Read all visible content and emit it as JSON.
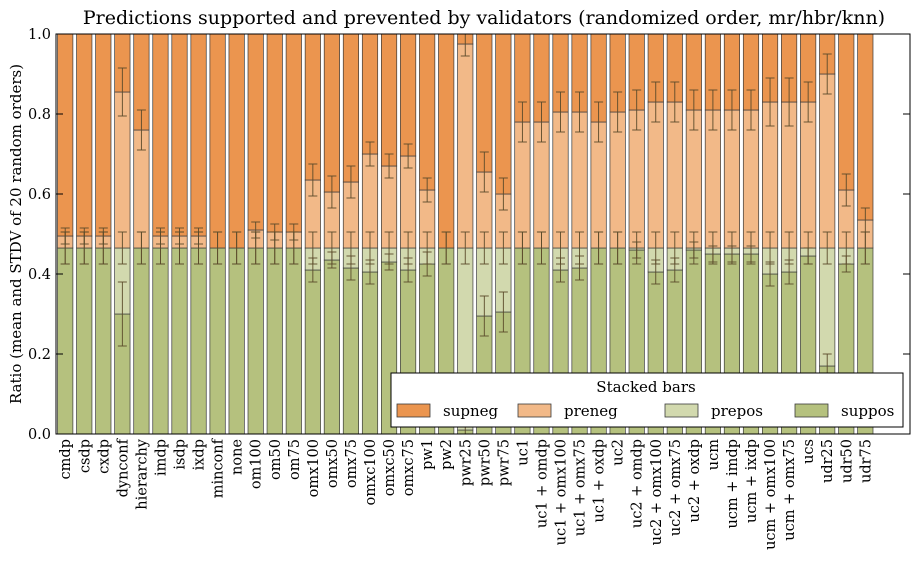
{
  "chart_data": {
    "type": "bar",
    "stacked": true,
    "title": "Predictions supported and prevented by validators (randomized order, mr/hbr/knn)",
    "xlabel": "",
    "ylabel": "Ratio (mean and STDV of 20 random orders)",
    "ylim": [
      0.0,
      1.0
    ],
    "yticks": [
      "0.0",
      "0.2",
      "0.4",
      "0.6",
      "0.8",
      "1.0"
    ],
    "grid": false,
    "legend": {
      "title": "Stacked bars",
      "placement": "lower-right"
    },
    "categories": [
      "cmdp",
      "csdp",
      "cxdp",
      "dynconf",
      "hierarchy",
      "imdp",
      "isdp",
      "ixdp",
      "minconf",
      "none",
      "om100",
      "om50",
      "om75",
      "omx100",
      "omx50",
      "omx75",
      "omxc100",
      "omxc50",
      "omxc75",
      "pw1",
      "pw2",
      "pwr25",
      "pwr50",
      "pwr75",
      "uc1",
      "uc1 + omdp",
      "uc1 + omx100",
      "uc1 + omx75",
      "uc1 + oxdp",
      "uc2",
      "uc2 + omdp",
      "uc2 + omx100",
      "uc2 + omx75",
      "uc2 + oxdp",
      "ucm",
      "ucm + imdp",
      "ucm + ixdp",
      "ucm + omx100",
      "ucm + omx75",
      "ucs",
      "udr25",
      "udr50",
      "udr75"
    ],
    "series": [
      {
        "name": "suppos",
        "color": "#b5c17e",
        "values": [
          0.465,
          0.465,
          0.465,
          0.3,
          0.465,
          0.465,
          0.465,
          0.465,
          0.465,
          0.465,
          0.465,
          0.465,
          0.465,
          0.41,
          0.435,
          0.415,
          0.405,
          0.43,
          0.41,
          0.425,
          0.465,
          0.01,
          0.295,
          0.305,
          0.465,
          0.465,
          0.41,
          0.415,
          0.465,
          0.465,
          0.46,
          0.405,
          0.41,
          0.46,
          0.45,
          0.45,
          0.45,
          0.4,
          0.405,
          0.445,
          0.17,
          0.425,
          0.465
        ],
        "err": [
          0.04,
          0.04,
          0.04,
          0.08,
          0.04,
          0.04,
          0.04,
          0.04,
          0.04,
          0.04,
          0.04,
          0.04,
          0.04,
          0.03,
          0.02,
          0.03,
          0.03,
          0.02,
          0.03,
          0.03,
          0.04,
          0.01,
          0.05,
          0.05,
          0.04,
          0.04,
          0.03,
          0.03,
          0.04,
          0.04,
          0.02,
          0.03,
          0.03,
          0.02,
          0.02,
          0.02,
          0.02,
          0.03,
          0.03,
          0.02,
          0.03,
          0.02,
          0.04
        ]
      },
      {
        "name": "prepos",
        "color": "#d2d9ae",
        "values": [
          0.0,
          0.0,
          0.0,
          0.165,
          0.0,
          0.0,
          0.0,
          0.0,
          0.0,
          0.0,
          0.0,
          0.0,
          0.0,
          0.055,
          0.03,
          0.05,
          0.06,
          0.035,
          0.055,
          0.04,
          0.0,
          0.455,
          0.17,
          0.16,
          0.0,
          0.0,
          0.055,
          0.05,
          0.0,
          0.0,
          0.005,
          0.06,
          0.055,
          0.005,
          0.015,
          0.015,
          0.015,
          0.065,
          0.06,
          0.02,
          0.295,
          0.04,
          0.0
        ],
        "err": [
          0.04,
          0.04,
          0.04,
          0.04,
          0.04,
          0.04,
          0.04,
          0.04,
          0.04,
          0.04,
          0.04,
          0.04,
          0.04,
          0.04,
          0.04,
          0.04,
          0.04,
          0.04,
          0.04,
          0.04,
          0.04,
          0.04,
          0.04,
          0.04,
          0.04,
          0.04,
          0.04,
          0.04,
          0.04,
          0.04,
          0.04,
          0.04,
          0.04,
          0.04,
          0.04,
          0.04,
          0.04,
          0.04,
          0.04,
          0.04,
          0.04,
          0.04,
          0.04
        ]
      },
      {
        "name": "preneg",
        "color": "#f2b988",
        "values": [
          0.03,
          0.03,
          0.03,
          0.39,
          0.295,
          0.03,
          0.03,
          0.03,
          0.0,
          0.0,
          0.045,
          0.04,
          0.04,
          0.17,
          0.14,
          0.165,
          0.235,
          0.205,
          0.23,
          0.145,
          0.0,
          0.51,
          0.19,
          0.135,
          0.315,
          0.315,
          0.34,
          0.34,
          0.315,
          0.34,
          0.345,
          0.365,
          0.365,
          0.345,
          0.345,
          0.345,
          0.345,
          0.365,
          0.365,
          0.365,
          0.435,
          0.145,
          0.07
        ],
        "err": [
          0.02,
          0.02,
          0.02,
          0.06,
          0.05,
          0.02,
          0.02,
          0.02,
          0.0,
          0.0,
          0.02,
          0.02,
          0.02,
          0.04,
          0.04,
          0.04,
          0.03,
          0.03,
          0.03,
          0.03,
          0.0,
          0.03,
          0.05,
          0.04,
          0.05,
          0.05,
          0.05,
          0.05,
          0.05,
          0.05,
          0.05,
          0.05,
          0.05,
          0.05,
          0.05,
          0.05,
          0.05,
          0.06,
          0.06,
          0.05,
          0.05,
          0.04,
          0.03
        ]
      },
      {
        "name": "supneg",
        "color": "#eb954f",
        "values": [
          0.505,
          0.505,
          0.505,
          0.145,
          0.24,
          0.505,
          0.505,
          0.505,
          0.535,
          0.535,
          0.49,
          0.495,
          0.495,
          0.365,
          0.395,
          0.37,
          0.3,
          0.33,
          0.305,
          0.39,
          0.535,
          0.025,
          0.345,
          0.4,
          0.22,
          0.22,
          0.195,
          0.195,
          0.22,
          0.195,
          0.19,
          0.17,
          0.17,
          0.19,
          0.19,
          0.19,
          0.19,
          0.17,
          0.17,
          0.17,
          0.1,
          0.39,
          0.465
        ]
      }
    ]
  }
}
